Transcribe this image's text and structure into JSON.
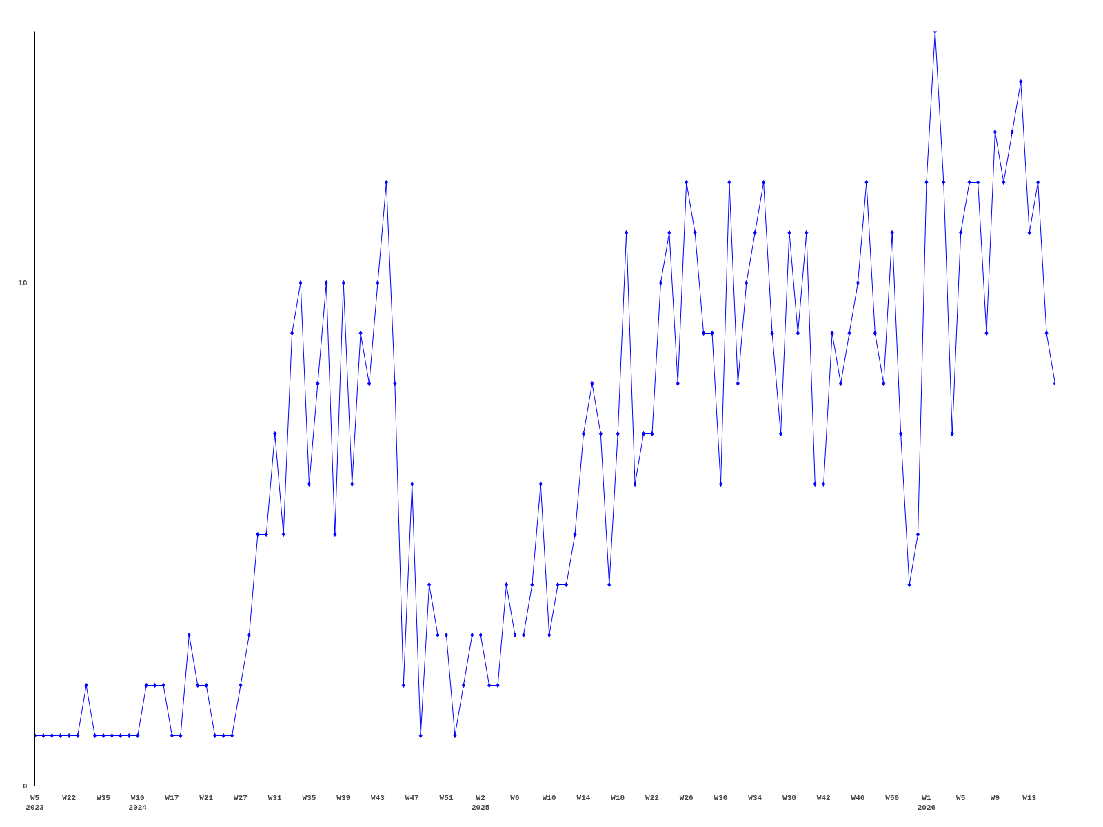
{
  "chart_data": {
    "type": "line",
    "marker": "diamond",
    "line_style": "solid",
    "grid": "y",
    "categories": [
      "W5\n2023",
      null,
      null,
      null,
      "W22",
      null,
      null,
      null,
      "W35",
      null,
      null,
      null,
      "W10\n2024",
      null,
      null,
      null,
      "W17",
      null,
      null,
      null,
      "W21",
      null,
      null,
      null,
      "W27",
      null,
      null,
      null,
      "W31",
      null,
      null,
      null,
      "W35",
      null,
      null,
      null,
      "W39",
      null,
      null,
      null,
      "W43",
      null,
      null,
      null,
      "W47",
      null,
      null,
      null,
      "W51",
      null,
      null,
      null,
      "W2\n2025",
      null,
      null,
      null,
      "W6",
      null,
      null,
      null,
      "W10",
      null,
      null,
      null,
      "W14",
      null,
      null,
      null,
      "W18",
      null,
      null,
      null,
      "W22",
      null,
      null,
      null,
      "W26",
      null,
      null,
      null,
      "W30",
      null,
      null,
      null,
      "W34",
      null,
      null,
      null,
      "W38",
      null,
      null,
      null,
      "W42",
      null,
      null,
      null,
      "W46",
      null,
      null,
      null,
      "W50",
      null,
      null,
      null,
      "W1\n2026",
      null,
      null,
      null,
      "W5",
      null,
      null,
      null,
      "W9",
      null,
      null,
      null,
      "W13",
      null,
      null,
      null
    ],
    "series": [
      {
        "color": "#0000ff",
        "values": [
          1,
          1,
          1,
          1,
          1,
          1,
          2,
          1,
          1,
          1,
          1,
          1,
          1,
          2,
          2,
          2,
          1,
          1,
          3,
          2,
          2,
          1,
          1,
          1,
          2,
          3,
          5,
          5,
          7,
          5,
          9,
          10,
          6,
          8,
          10,
          5,
          10,
          6,
          9,
          8,
          10,
          12,
          8,
          2,
          6,
          1,
          4,
          3,
          3,
          1,
          2,
          3,
          3,
          2,
          2,
          4,
          3,
          3,
          4,
          6,
          3,
          4,
          4,
          5,
          7,
          8,
          7,
          4,
          7,
          11,
          6,
          7,
          7,
          10,
          11,
          8,
          12,
          11,
          9,
          9,
          6,
          12,
          8,
          10,
          11,
          12,
          9,
          7,
          11,
          9,
          11,
          6,
          6,
          9,
          8,
          9,
          10,
          12,
          9,
          8,
          11,
          7,
          4,
          5,
          12,
          15,
          12,
          7,
          11,
          12,
          12,
          9,
          13,
          12,
          13,
          14,
          11,
          12,
          9,
          8
        ]
      }
    ],
    "ylim": [
      0,
      15
    ],
    "yticks": [
      0,
      10
    ]
  }
}
